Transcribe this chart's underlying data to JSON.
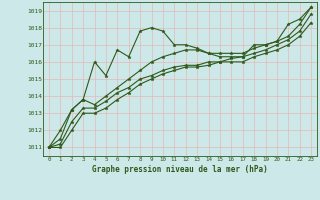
{
  "title": "",
  "xlabel": "Graphe pression niveau de la mer (hPa)",
  "ylabel": "",
  "bg_color": "#cce8e8",
  "plot_bg_color": "#cce8e8",
  "line_color": "#2d5a1b",
  "grid_color": "#e8b8b8",
  "label_color": "#2d5a1b",
  "ylim": [
    1010.5,
    1019.5
  ],
  "xlim": [
    -0.5,
    23.5
  ],
  "yticks": [
    1011,
    1012,
    1013,
    1014,
    1015,
    1016,
    1017,
    1018,
    1019
  ],
  "xticks": [
    0,
    1,
    2,
    3,
    4,
    5,
    6,
    7,
    8,
    9,
    10,
    11,
    12,
    13,
    14,
    15,
    16,
    17,
    18,
    19,
    20,
    21,
    22,
    23
  ],
  "series1": {
    "x": [
      0,
      1,
      2,
      3,
      4,
      5,
      6,
      7,
      8,
      9,
      10,
      11,
      12,
      13,
      14,
      15,
      16,
      17,
      18,
      19,
      20,
      21,
      22,
      23
    ],
    "y": [
      1011.0,
      1012.0,
      1013.2,
      1013.8,
      1016.0,
      1015.2,
      1016.7,
      1016.3,
      1017.8,
      1018.0,
      1017.8,
      1017.0,
      1017.0,
      1016.8,
      1016.5,
      1016.3,
      1016.3,
      1016.3,
      1017.0,
      1017.0,
      1017.2,
      1018.2,
      1018.5,
      1019.2
    ]
  },
  "series2": {
    "x": [
      0,
      1,
      2,
      3,
      4,
      5,
      6,
      7,
      8,
      9,
      10,
      11,
      12,
      13,
      14,
      15,
      16,
      17,
      18,
      19,
      20,
      21,
      22,
      23
    ],
    "y": [
      1011.0,
      1011.5,
      1013.2,
      1013.8,
      1013.5,
      1014.0,
      1014.5,
      1015.0,
      1015.5,
      1016.0,
      1016.3,
      1016.5,
      1016.7,
      1016.7,
      1016.5,
      1016.5,
      1016.5,
      1016.5,
      1016.8,
      1017.0,
      1017.2,
      1017.5,
      1018.2,
      1019.2
    ]
  },
  "series3": {
    "x": [
      0,
      1,
      2,
      3,
      4,
      5,
      6,
      7,
      8,
      9,
      10,
      11,
      12,
      13,
      14,
      15,
      16,
      17,
      18,
      19,
      20,
      21,
      22,
      23
    ],
    "y": [
      1011.0,
      1011.2,
      1012.5,
      1013.3,
      1013.3,
      1013.7,
      1014.2,
      1014.5,
      1015.0,
      1015.2,
      1015.5,
      1015.7,
      1015.8,
      1015.8,
      1016.0,
      1016.0,
      1016.2,
      1016.3,
      1016.5,
      1016.7,
      1017.0,
      1017.3,
      1017.8,
      1018.8
    ]
  },
  "series4": {
    "x": [
      0,
      1,
      2,
      3,
      4,
      5,
      6,
      7,
      8,
      9,
      10,
      11,
      12,
      13,
      14,
      15,
      16,
      17,
      18,
      19,
      20,
      21,
      22,
      23
    ],
    "y": [
      1011.0,
      1011.0,
      1012.0,
      1013.0,
      1013.0,
      1013.3,
      1013.8,
      1014.2,
      1014.7,
      1015.0,
      1015.3,
      1015.5,
      1015.7,
      1015.7,
      1015.8,
      1016.0,
      1016.0,
      1016.0,
      1016.3,
      1016.5,
      1016.7,
      1017.0,
      1017.5,
      1018.3
    ]
  }
}
